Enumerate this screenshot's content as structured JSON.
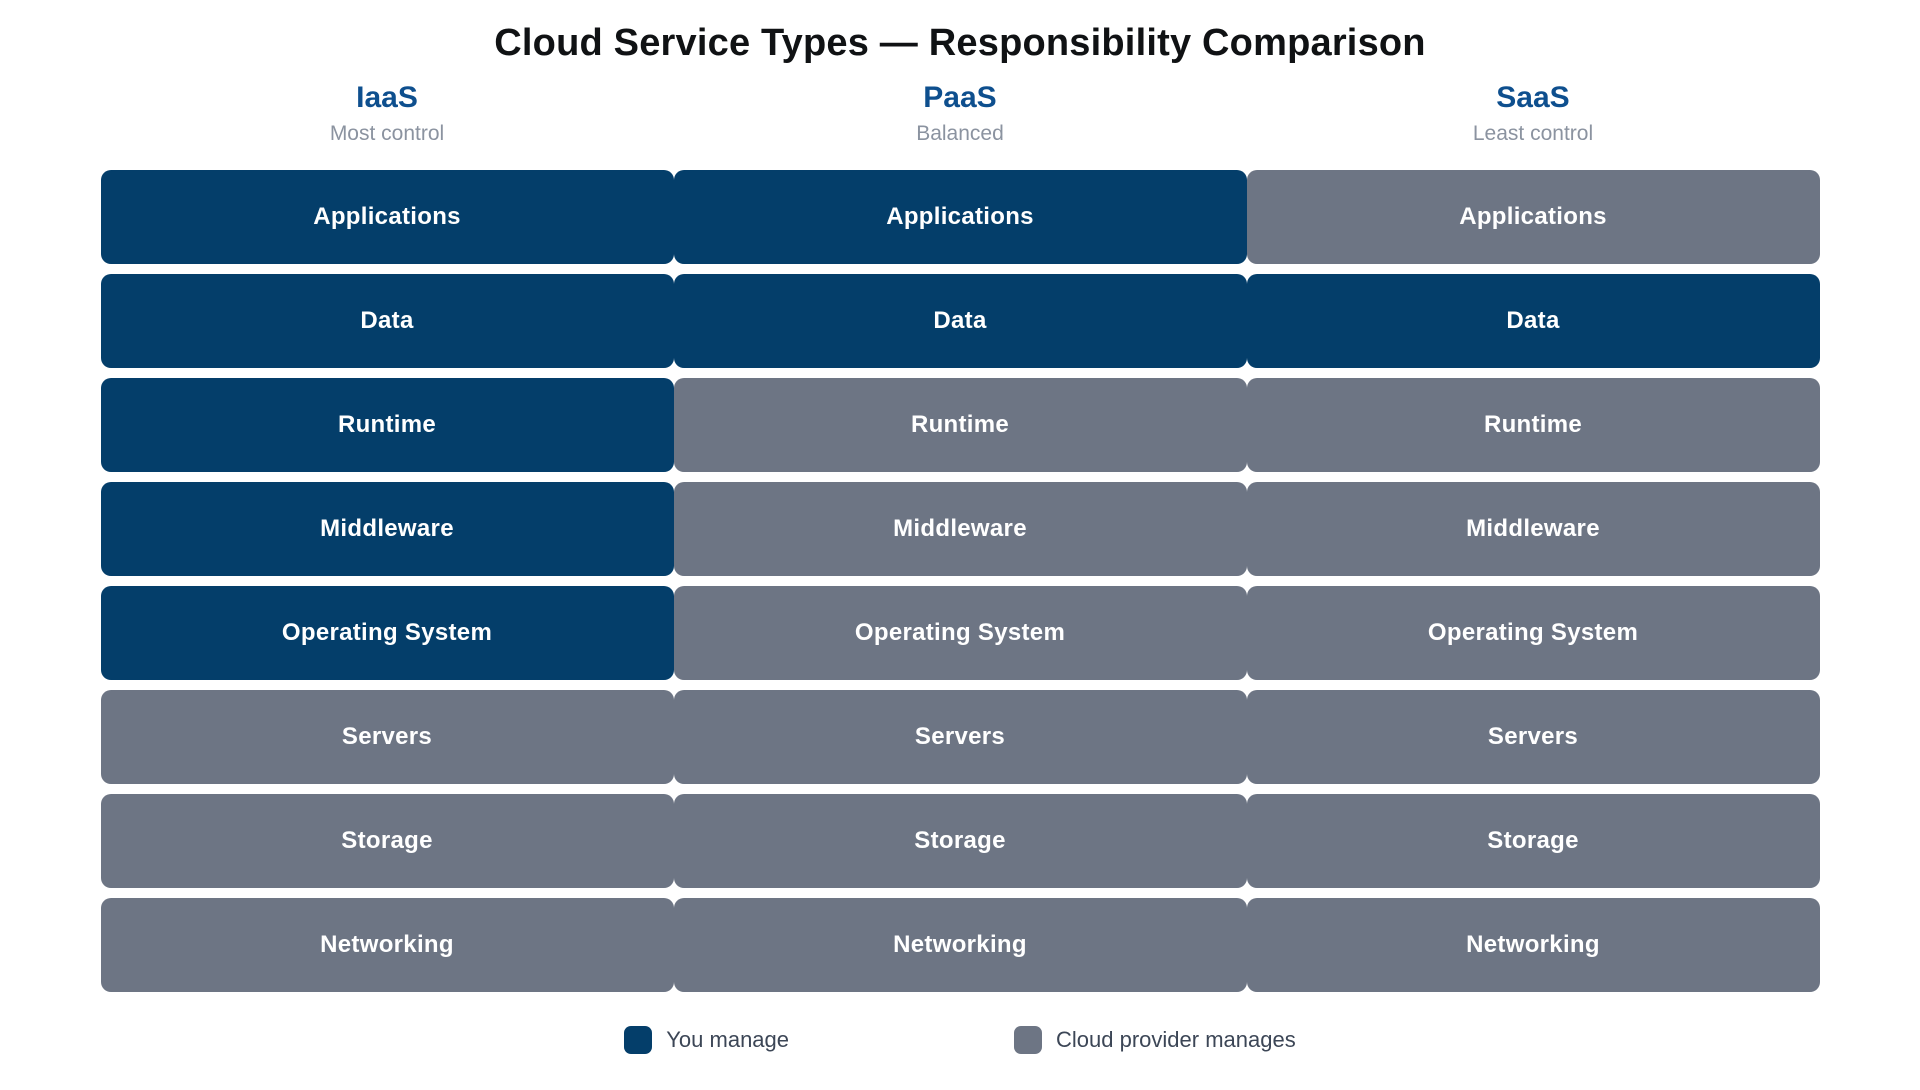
{
  "title": "Cloud Service Types — Responsibility Comparison",
  "colors": {
    "you_manage": "#043e6a",
    "provider_manages": "#6d7584",
    "header_blue": "#0e4f8e",
    "subtitle_gray": "#8b93a0",
    "cell_text": "#ffffff"
  },
  "columns": [
    {
      "id": "iaas",
      "label": "IaaS",
      "subtitle": "Most control"
    },
    {
      "id": "paas",
      "label": "PaaS",
      "subtitle": "Balanced"
    },
    {
      "id": "saas",
      "label": "SaaS",
      "subtitle": "Least control"
    }
  ],
  "grid": {
    "rows": [
      {
        "label": "Applications",
        "cells": [
          "you",
          "you",
          "provider"
        ]
      },
      {
        "label": "Data",
        "cells": [
          "you",
          "you",
          "you"
        ]
      },
      {
        "label": "Runtime",
        "cells": [
          "you",
          "provider",
          "provider"
        ]
      },
      {
        "label": "Middleware",
        "cells": [
          "you",
          "provider",
          "provider"
        ]
      },
      {
        "label": "Operating System",
        "cells": [
          "you",
          "provider",
          "provider"
        ]
      },
      {
        "label": "Servers",
        "cells": [
          "provider",
          "provider",
          "provider"
        ]
      },
      {
        "label": "Storage",
        "cells": [
          "provider",
          "provider",
          "provider"
        ]
      },
      {
        "label": "Networking",
        "cells": [
          "provider",
          "provider",
          "provider"
        ]
      }
    ]
  },
  "legend": {
    "items": [
      {
        "type": "you",
        "label": "You manage"
      },
      {
        "type": "provider",
        "label": "Cloud provider manages"
      }
    ]
  }
}
